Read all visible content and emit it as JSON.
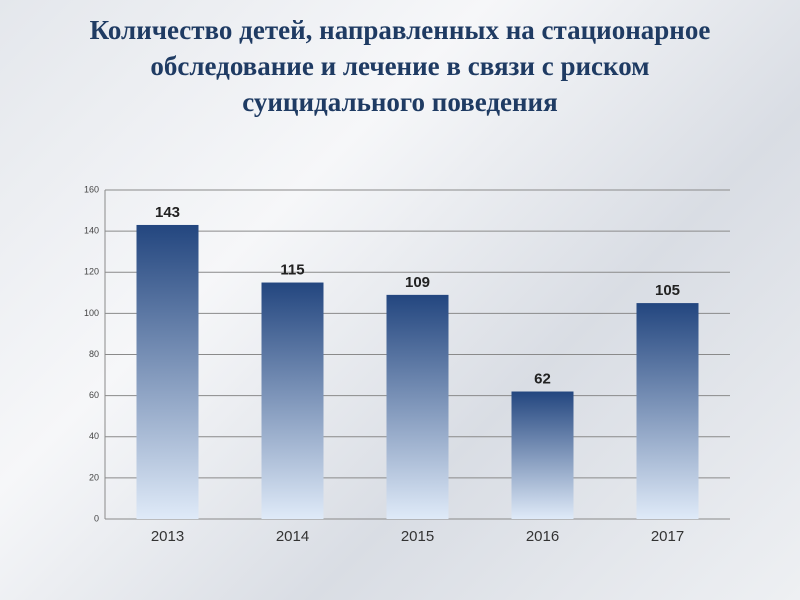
{
  "chart_data": {
    "type": "bar",
    "title": "Количество детей, направленных на стационарное обследование и лечение в связи с риском суицидального поведения",
    "categories": [
      "2013",
      "2014",
      "2015",
      "2016",
      "2017"
    ],
    "values": [
      143,
      115,
      109,
      62,
      105
    ],
    "color": "#23467f",
    "ylim": [
      0,
      160
    ],
    "yticks": [
      0,
      20,
      40,
      60,
      80,
      100,
      120,
      140,
      160
    ],
    "grid": true
  }
}
